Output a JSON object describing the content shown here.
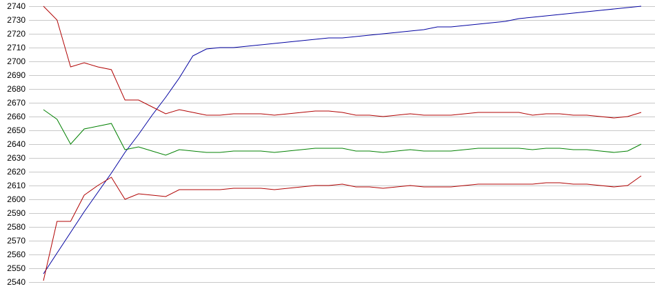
{
  "chart_data": {
    "type": "line",
    "ylim": [
      2540,
      2740
    ],
    "yticks": [
      2540,
      2550,
      2560,
      2570,
      2580,
      2590,
      2600,
      2610,
      2620,
      2630,
      2640,
      2650,
      2660,
      2670,
      2680,
      2690,
      2700,
      2710,
      2720,
      2730,
      2740
    ],
    "grid": true,
    "series": [
      {
        "color": "#0000a0",
        "values": [
          2546,
          2561,
          2576,
          2591,
          2605,
          2619,
          2634,
          2647,
          2661,
          2674,
          2688,
          2704,
          2709,
          2710,
          2710,
          2711,
          2712,
          2713,
          2714,
          2715,
          2716,
          2717,
          2717,
          2718,
          2719,
          2720,
          2721,
          2722,
          2723,
          2725,
          2725,
          2726,
          2727,
          2728,
          2729,
          2731,
          2732,
          2733,
          2734,
          2735,
          2736,
          2737,
          2738,
          2739,
          2740
        ]
      },
      {
        "color": "#b00000",
        "values": [
          2740,
          2730,
          2696,
          2699,
          2696,
          2694,
          2672,
          2672,
          2667,
          2662,
          2665,
          2663,
          2661,
          2661,
          2662,
          2662,
          2662,
          2661,
          2662,
          2663,
          2664,
          2664,
          2663,
          2661,
          2661,
          2660,
          2661,
          2662,
          2661,
          2661,
          2661,
          2662,
          2663,
          2663,
          2663,
          2663,
          2661,
          2662,
          2662,
          2661,
          2661,
          2660,
          2659,
          2660,
          2663
        ]
      },
      {
        "color": "#008000",
        "values": [
          2665,
          2658,
          2640,
          2651,
          2653,
          2655,
          2636,
          2638,
          2635,
          2632,
          2636,
          2635,
          2634,
          2634,
          2635,
          2635,
          2635,
          2634,
          2635,
          2636,
          2637,
          2637,
          2637,
          2635,
          2635,
          2634,
          2635,
          2636,
          2635,
          2635,
          2635,
          2636,
          2637,
          2637,
          2637,
          2637,
          2636,
          2637,
          2637,
          2636,
          2636,
          2635,
          2634,
          2635,
          2640
        ]
      },
      {
        "color": "#b00000",
        "values": [
          2541,
          2584,
          2584,
          2603,
          2610,
          2616,
          2600,
          2604,
          2603,
          2602,
          2607,
          2607,
          2607,
          2607,
          2608,
          2608,
          2608,
          2607,
          2608,
          2609,
          2610,
          2610,
          2611,
          2609,
          2609,
          2608,
          2609,
          2610,
          2609,
          2609,
          2609,
          2610,
          2611,
          2611,
          2611,
          2611,
          2611,
          2612,
          2612,
          2611,
          2611,
          2610,
          2609,
          2610,
          2617
        ]
      }
    ]
  }
}
